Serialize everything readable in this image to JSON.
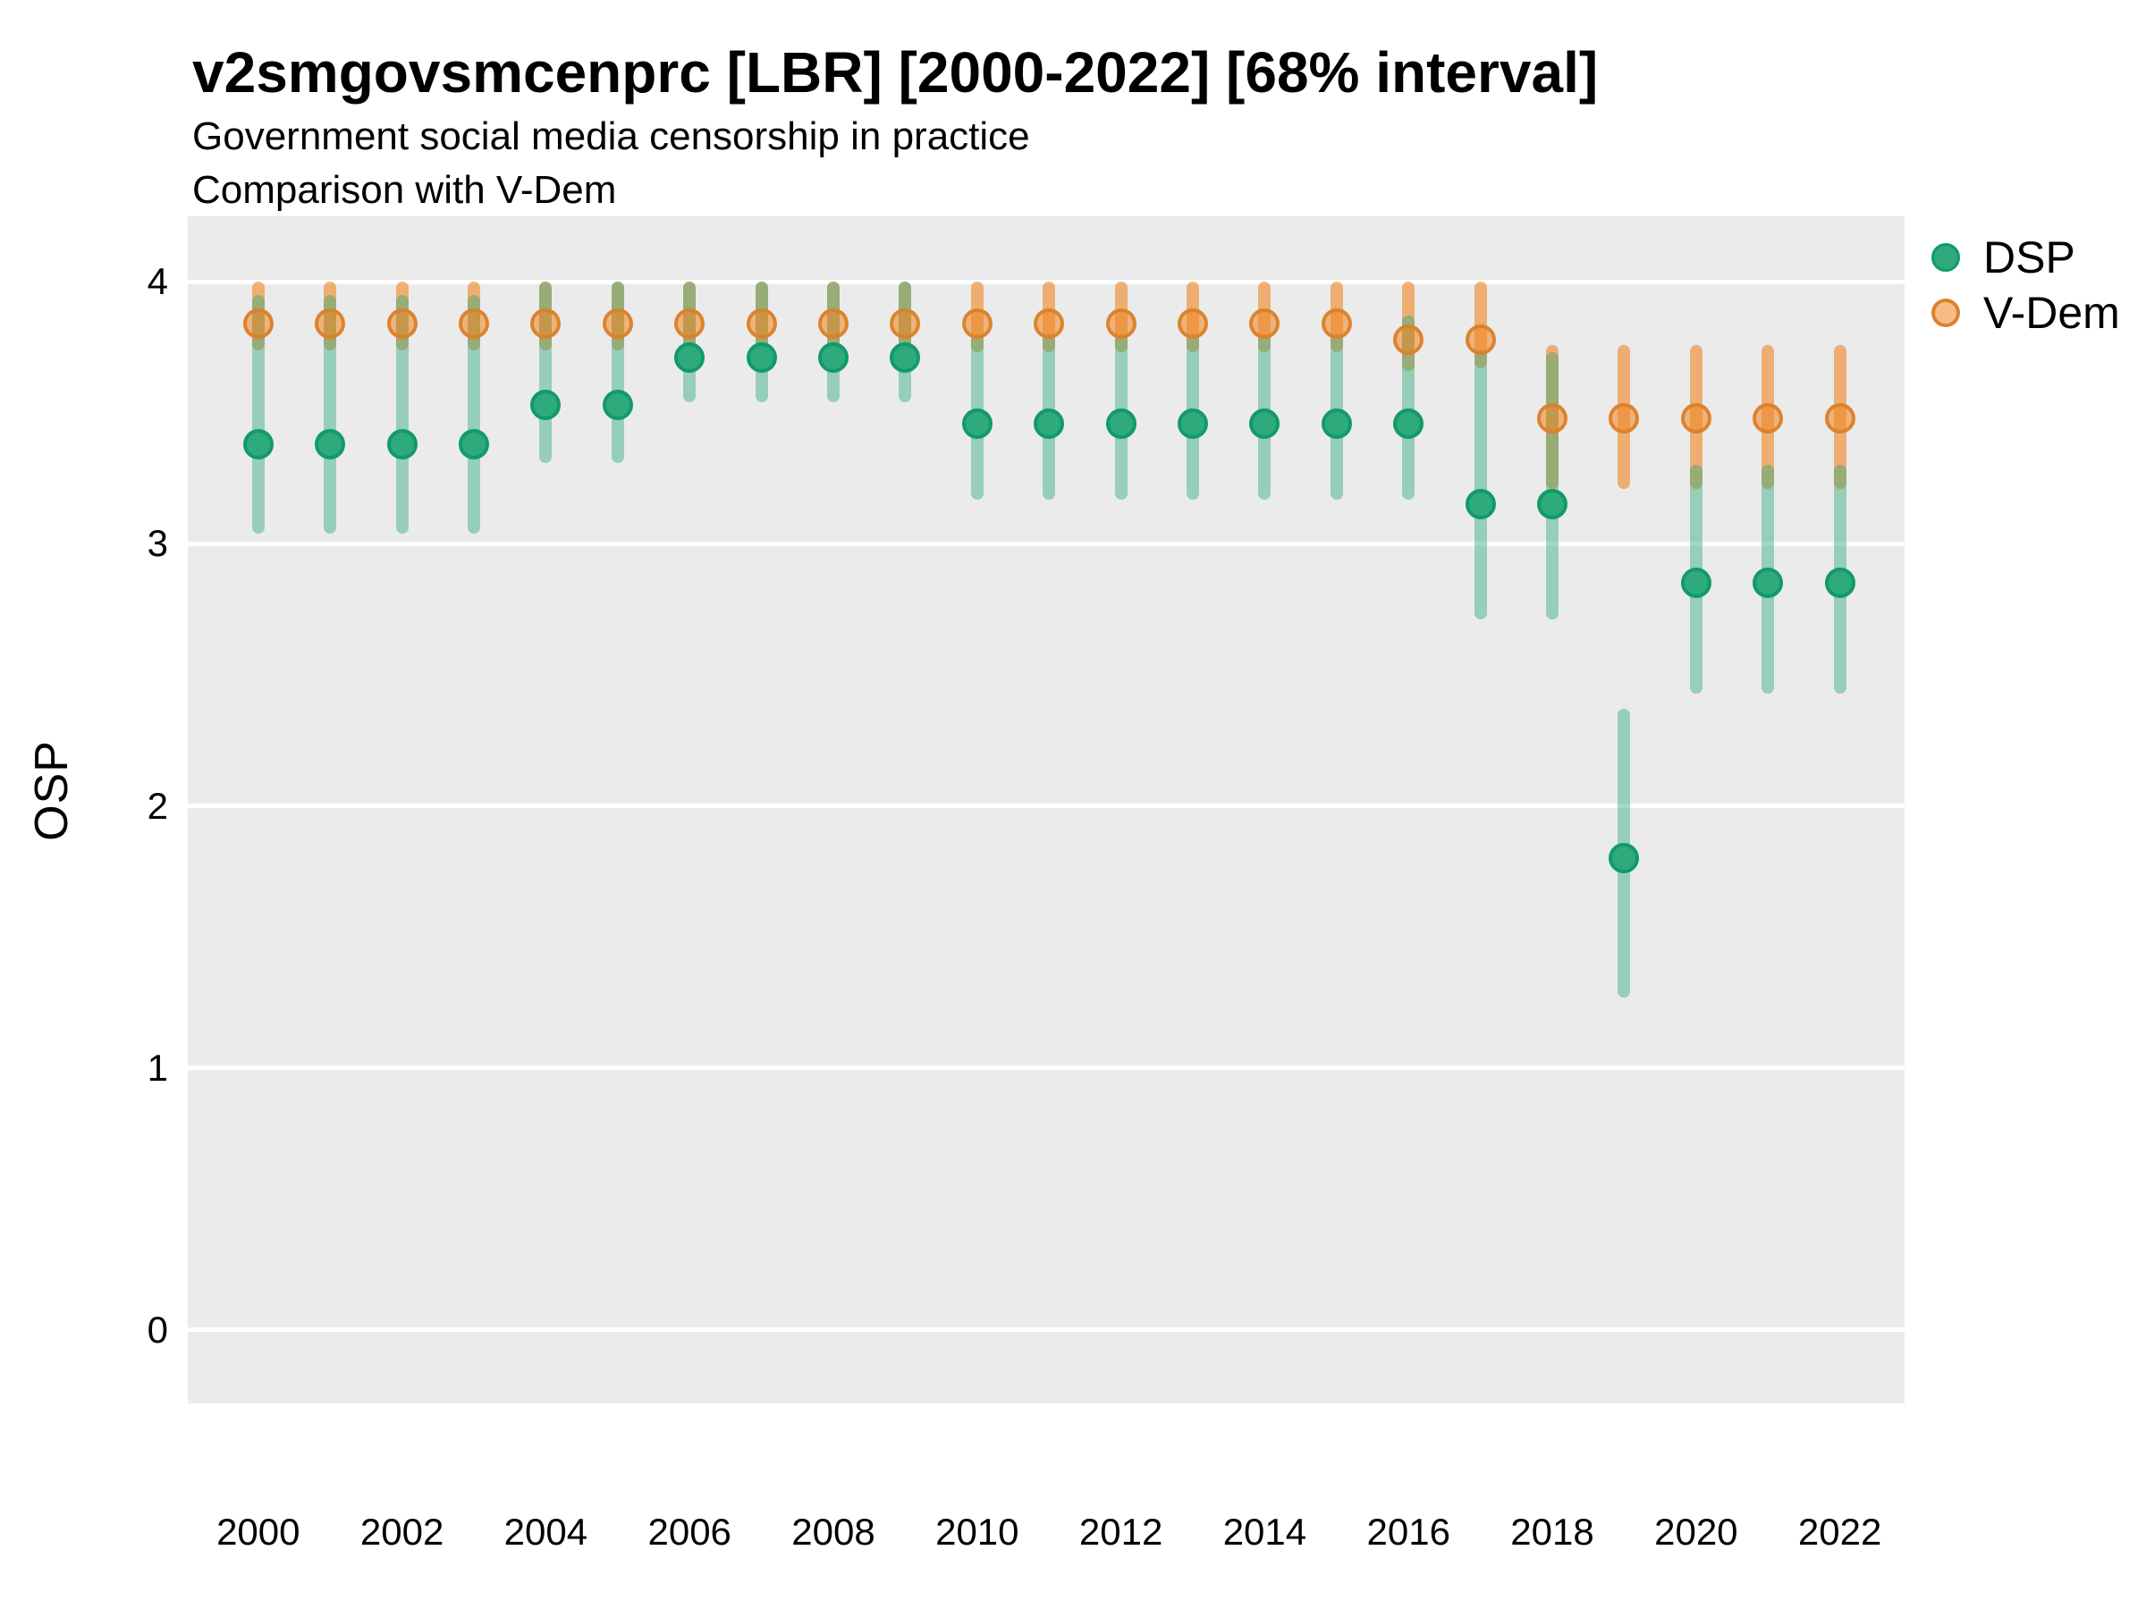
{
  "header": {
    "title": "v2smgovsmcenprc [LBR] [2000-2022] [68% interval]",
    "subtitle": "Government social media censorship in practice",
    "subtitle2": "Comparison with V-Dem"
  },
  "ylabel": "OSP",
  "legend": [
    {
      "label": "DSP",
      "series": "DSP"
    },
    {
      "label": "V-Dem",
      "series": "V-Dem"
    }
  ],
  "colors": {
    "panel_bg": "#EBEBEB",
    "gridline": "#FFFFFF",
    "dsp_point_fill": "#2EAA7D",
    "dsp_point_stroke": "#119A6B",
    "dsp_interval": "rgba(46,171,124,0.45)",
    "vdem_point_fill": "rgba(238,133,32,0.55)",
    "vdem_point_stroke": "rgba(219,128,42,0.95)",
    "vdem_interval": "rgba(238,133,32,0.6)",
    "text": "#000000"
  },
  "chart_data": {
    "type": "scatter",
    "subtype": "pointrange-interval-comparison",
    "title": "v2smgovsmcenprc [LBR] [2000-2022] [68% interval]",
    "subtitle": "Government social media censorship in practice",
    "comparison_note": "Comparison with V-Dem",
    "interval": "68%",
    "xlabel": "",
    "ylabel": "OSP",
    "x": [
      2000,
      2001,
      2002,
      2003,
      2004,
      2005,
      2006,
      2007,
      2008,
      2009,
      2010,
      2011,
      2012,
      2013,
      2014,
      2015,
      2016,
      2017,
      2018,
      2019,
      2020,
      2021,
      2022
    ],
    "series": [
      {
        "name": "DSP",
        "values": [
          3.38,
          3.38,
          3.38,
          3.38,
          3.53,
          3.53,
          3.71,
          3.71,
          3.71,
          3.71,
          3.46,
          3.46,
          3.46,
          3.46,
          3.46,
          3.46,
          3.46,
          3.15,
          3.15,
          1.8,
          2.85,
          2.85,
          2.85
        ],
        "lo": [
          3.04,
          3.04,
          3.04,
          3.04,
          3.31,
          3.31,
          3.54,
          3.54,
          3.54,
          3.54,
          3.17,
          3.17,
          3.17,
          3.17,
          3.17,
          3.17,
          3.17,
          2.71,
          2.71,
          1.27,
          2.43,
          2.43,
          2.43
        ],
        "hi": [
          3.95,
          3.95,
          3.95,
          3.95,
          4.0,
          4.0,
          4.0,
          4.0,
          4.0,
          4.0,
          3.8,
          3.8,
          3.8,
          3.8,
          3.8,
          3.8,
          3.87,
          3.74,
          3.73,
          2.37,
          3.3,
          3.3,
          3.3
        ]
      },
      {
        "name": "V-Dem",
        "values": [
          3.84,
          3.84,
          3.84,
          3.84,
          3.84,
          3.84,
          3.84,
          3.84,
          3.84,
          3.84,
          3.84,
          3.84,
          3.84,
          3.84,
          3.84,
          3.84,
          3.78,
          3.78,
          3.48,
          3.48,
          3.48,
          3.48,
          3.48
        ],
        "lo": [
          3.74,
          3.74,
          3.74,
          3.74,
          3.74,
          3.74,
          3.74,
          3.74,
          3.74,
          3.74,
          3.73,
          3.73,
          3.73,
          3.73,
          3.73,
          3.73,
          3.66,
          3.67,
          3.21,
          3.21,
          3.21,
          3.21,
          3.21
        ],
        "hi": [
          4.0,
          4.0,
          4.0,
          4.0,
          4.0,
          4.0,
          4.0,
          4.0,
          4.0,
          4.0,
          4.0,
          4.0,
          4.0,
          4.0,
          4.0,
          4.0,
          4.0,
          4.0,
          3.76,
          3.76,
          3.76,
          3.76,
          3.76
        ]
      }
    ],
    "yticks": [
      0,
      1,
      2,
      3,
      4
    ],
    "xticks": [
      2000,
      2002,
      2004,
      2006,
      2008,
      2010,
      2012,
      2014,
      2016,
      2018,
      2020,
      2022
    ],
    "ylim": [
      -0.28,
      4.25
    ],
    "xlim": [
      1999.02,
      2022.9
    ],
    "grid": "major-horizontal-only",
    "legend_position": "right-top"
  }
}
